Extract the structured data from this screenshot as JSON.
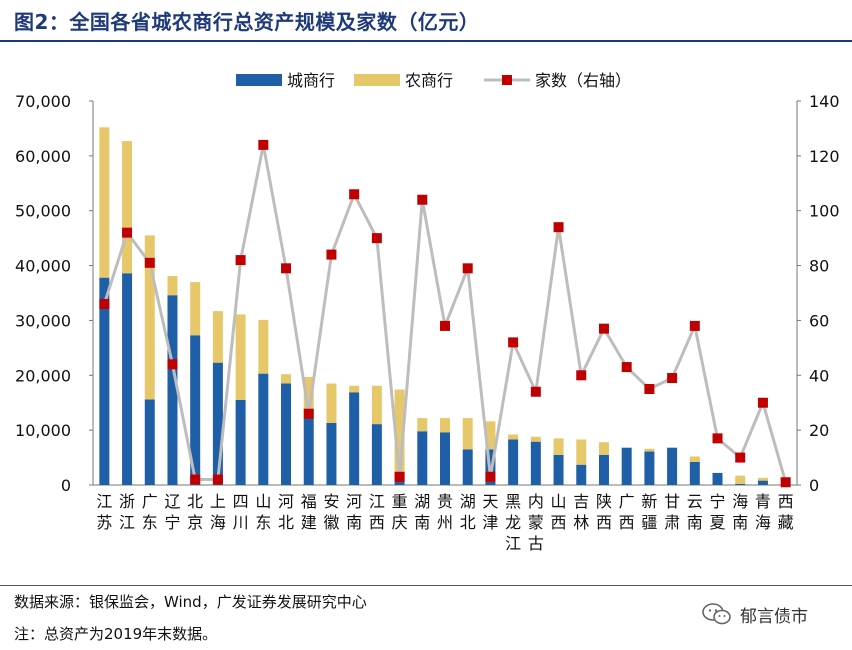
{
  "header": {
    "title": "图2：全国各省城农商行总资产规模及家数（亿元）"
  },
  "footer": {
    "source": "数据来源：银保监会，Wind，广发证券发展研究中心",
    "note": "注：总资产为2019年末数据。",
    "brand": "郁言债市"
  },
  "colors": {
    "city": "#1f5fa8",
    "rural": "#e6c86a",
    "count_line": "#bdbdbd",
    "count_marker": "#c00000"
  },
  "chart_data": {
    "type": "bar",
    "stacked": true,
    "title": "",
    "legend": [
      "城商行",
      "农商行",
      "家数（右轴）"
    ],
    "legend_position": "top-center",
    "categories": [
      [
        "江",
        "苏"
      ],
      [
        "浙",
        "江"
      ],
      [
        "广",
        "东"
      ],
      [
        "辽",
        "宁"
      ],
      [
        "北",
        "京"
      ],
      [
        "上",
        "海"
      ],
      [
        "四",
        "川"
      ],
      [
        "山",
        "东"
      ],
      [
        "河",
        "北"
      ],
      [
        "福",
        "建"
      ],
      [
        "安",
        "徽"
      ],
      [
        "河",
        "南"
      ],
      [
        "江",
        "西"
      ],
      [
        "重",
        "庆"
      ],
      [
        "湖",
        "南"
      ],
      [
        "贵",
        "州"
      ],
      [
        "湖",
        "北"
      ],
      [
        "天",
        "津"
      ],
      [
        "黑",
        "龙",
        "江"
      ],
      [
        "内",
        "蒙",
        "古"
      ],
      [
        "山",
        "西"
      ],
      [
        "吉",
        "林"
      ],
      [
        "陕",
        "西"
      ],
      [
        "广",
        "西"
      ],
      [
        "新",
        "疆"
      ],
      [
        "甘",
        "肃"
      ],
      [
        "云",
        "南"
      ],
      [
        "宁",
        "夏"
      ],
      [
        "海",
        "南"
      ],
      [
        "青",
        "海"
      ],
      [
        "西",
        "藏"
      ]
    ],
    "series": [
      {
        "name": "城商行",
        "values": [
          37800,
          38600,
          15600,
          34600,
          27300,
          22300,
          15500,
          20300,
          18500,
          12300,
          11300,
          16900,
          11100,
          2300,
          9800,
          9600,
          6500,
          6500,
          8300,
          7900,
          5500,
          3700,
          5500,
          6800,
          6100,
          6800,
          4200,
          2200,
          200,
          800,
          0
        ]
      },
      {
        "name": "农商行",
        "values": [
          27400,
          24100,
          29900,
          3500,
          9700,
          9400,
          15600,
          9800,
          1700,
          7400,
          7200,
          1200,
          7000,
          15100,
          2400,
          2600,
          5700,
          5100,
          900,
          900,
          3000,
          4600,
          2300,
          0,
          500,
          0,
          1000,
          0,
          1500,
          500,
          0
        ]
      },
      {
        "name": "家数（右轴）",
        "axis": "right",
        "values": [
          66,
          92,
          81,
          44,
          2,
          2,
          82,
          124,
          79,
          26,
          84,
          106,
          90,
          3,
          104,
          58,
          79,
          3,
          52,
          34,
          94,
          40,
          57,
          43,
          35,
          39,
          58,
          17,
          10,
          30,
          1
        ]
      }
    ],
    "y_left": {
      "min": 0,
      "max": 70000,
      "ticks": [
        "0",
        "10,000",
        "20,000",
        "30,000",
        "40,000",
        "50,000",
        "60,000",
        "70,000"
      ]
    },
    "y_right": {
      "min": 0,
      "max": 140,
      "ticks": [
        "0",
        "20",
        "40",
        "60",
        "80",
        "100",
        "120",
        "140"
      ]
    }
  }
}
